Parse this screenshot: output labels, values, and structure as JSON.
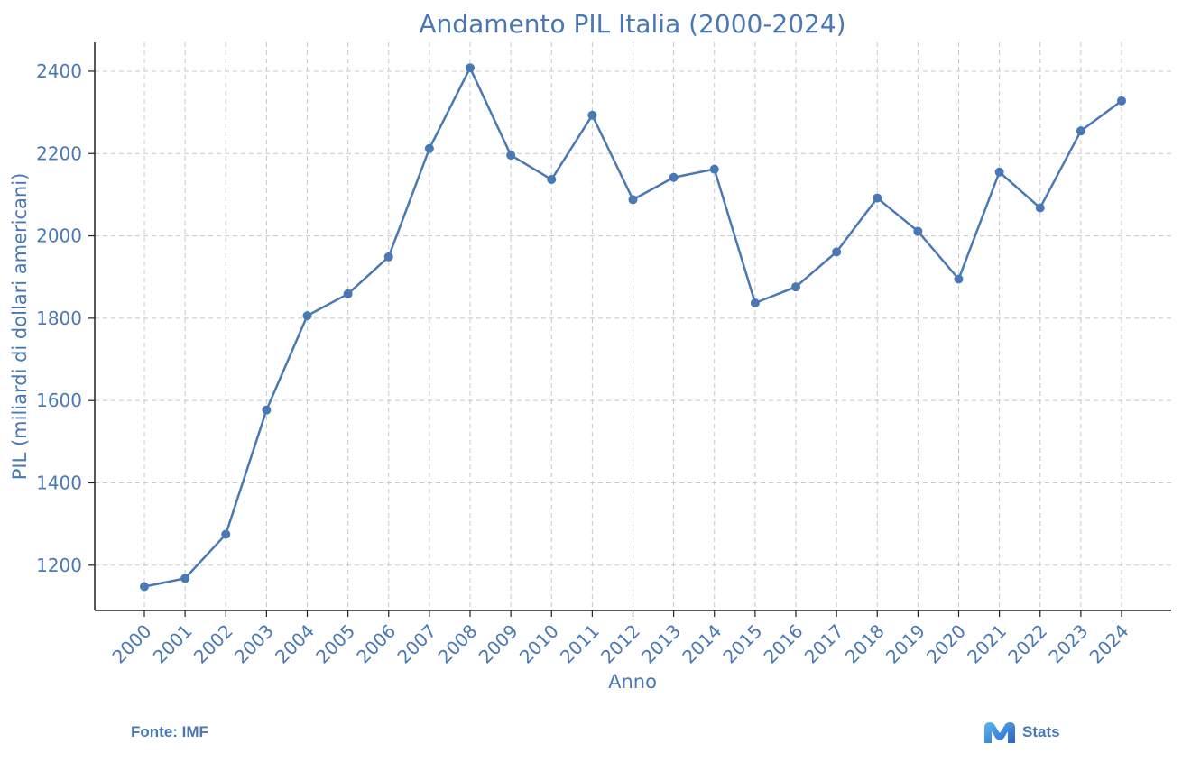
{
  "chart_data": {
    "type": "line",
    "title": "Andamento PIL Italia (2000-2024)",
    "xlabel": "Anno",
    "ylabel": "PIL (miliardi di dollari americani)",
    "categories": [
      "2000",
      "2001",
      "2002",
      "2003",
      "2004",
      "2005",
      "2006",
      "2007",
      "2008",
      "2009",
      "2010",
      "2011",
      "2012",
      "2013",
      "2014",
      "2015",
      "2016",
      "2017",
      "2018",
      "2019",
      "2020",
      "2021",
      "2022",
      "2023",
      "2024"
    ],
    "series": [
      {
        "values": [
          1148,
          1168,
          1275,
          1577,
          1806,
          1859,
          1949,
          2212,
          2408,
          2196,
          2137,
          2293,
          2088,
          2142,
          2162,
          1837,
          1876,
          1961,
          2092,
          2011,
          1895,
          2155,
          2068,
          2255,
          2328
        ]
      }
    ],
    "ylim": [
      1090,
      2470
    ],
    "yticks": [
      1200,
      1400,
      1600,
      1800,
      2000,
      2200,
      2400
    ],
    "grid": true,
    "color": "#4a78b4"
  },
  "footer": {
    "source": "Fonte: IMF",
    "brand": "Stats",
    "brand_icon": "m-logo-icon"
  }
}
